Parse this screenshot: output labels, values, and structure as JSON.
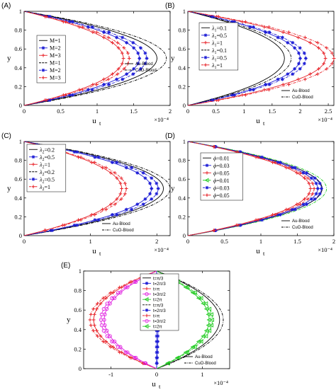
{
  "colors": {
    "black": "#000000",
    "blue": "#1f1fd6",
    "red": "#e8252b",
    "magenta": "#e020e0",
    "green": "#22cc22"
  },
  "chart_data": [
    {
      "panel_label": "(A)",
      "type": "line",
      "xlabel": "u",
      "xlabel_sub": "t",
      "ylabel": "y",
      "exponent": "×10⁻⁴",
      "xlim": [
        0,
        2
      ],
      "ylim": [
        0,
        1
      ],
      "xticks": [
        0,
        0.5,
        1,
        1.5,
        2
      ],
      "xtick_labels": [
        "0",
        "0.5",
        "1",
        "1.5",
        "2"
      ],
      "yticks": [
        0,
        0.2,
        0.4,
        0.6,
        0.8,
        1
      ],
      "ytick_labels": [
        "0",
        "0.2",
        "0.4",
        "0.6",
        "0.8",
        "1"
      ],
      "legend": {
        "placement": "left",
        "entries": [
          "M=1",
          "M=2",
          "M=3",
          "M=1",
          "M=2",
          "M=3"
        ],
        "styles": [
          "kl",
          "bs",
          "rs",
          "kd",
          "bd",
          "rd"
        ]
      },
      "legend2": {
        "entries": [
          "Au-Blood",
          "CuO-Blood"
        ]
      },
      "series": [
        {
          "group": "Au-Blood",
          "legend_entry": "M=1",
          "color": "black",
          "dash": false,
          "marker": "none",
          "peak": 1.82
        },
        {
          "group": "Au-Blood",
          "legend_entry": "M=2",
          "color": "blue",
          "dash": false,
          "marker": "star",
          "peak": 1.58
        },
        {
          "group": "Au-Blood",
          "legend_entry": "M=3",
          "color": "red",
          "dash": false,
          "marker": "plus",
          "peak": 1.36
        },
        {
          "group": "CuO-Blood",
          "legend_entry": "M=1",
          "color": "black",
          "dash": true,
          "marker": "none",
          "peak": 1.95
        },
        {
          "group": "CuO-Blood",
          "legend_entry": "M=2",
          "color": "blue",
          "dash": true,
          "marker": "star",
          "peak": 1.68
        },
        {
          "group": "CuO-Blood",
          "legend_entry": "M=3",
          "color": "red",
          "dash": true,
          "marker": "plus",
          "peak": 1.44
        }
      ]
    },
    {
      "panel_label": "(B)",
      "type": "line",
      "xlabel": "u",
      "xlabel_sub": "t",
      "ylabel": "y",
      "exponent": "×10⁻⁴",
      "xlim": [
        0,
        2.6
      ],
      "ylim": [
        0,
        1
      ],
      "xticks": [
        0,
        0.5,
        1,
        1.5,
        2,
        2.5
      ],
      "xtick_labels": [
        "0",
        "0.5",
        "1",
        "1.5",
        "2",
        "2.5"
      ],
      "yticks": [
        0,
        0.2,
        0.4,
        0.6,
        0.8,
        1
      ],
      "ytick_labels": [
        "0",
        "0.2",
        "0.4",
        "0.6",
        "0.8",
        "1"
      ],
      "legend": {
        "placement": "left",
        "symbol": "λ",
        "sub": "1",
        "entries": [
          "=0.1",
          "=0.5",
          "=1",
          "=0.1",
          "=0.5",
          "=1"
        ],
        "styles": [
          "kl",
          "bs",
          "rs",
          "kd",
          "bd",
          "rd"
        ]
      },
      "legend2": {
        "entries": [
          "Au-Blood",
          "CuO-Blood"
        ]
      },
      "series": [
        {
          "group": "Au-Blood",
          "legend_entry": "λ1=0.1",
          "color": "black",
          "dash": false,
          "marker": "none",
          "peak": 1.72
        },
        {
          "group": "Au-Blood",
          "legend_entry": "λ1=0.5",
          "color": "blue",
          "dash": false,
          "marker": "star",
          "peak": 2.0
        },
        {
          "group": "Au-Blood",
          "legend_entry": "λ1=1",
          "color": "red",
          "dash": false,
          "marker": "plus",
          "peak": 2.45
        },
        {
          "group": "CuO-Blood",
          "legend_entry": "λ1=0.1",
          "color": "black",
          "dash": true,
          "marker": "none",
          "peak": 1.84
        },
        {
          "group": "CuO-Blood",
          "legend_entry": "λ1=0.5",
          "color": "blue",
          "dash": true,
          "marker": "star",
          "peak": 2.1
        },
        {
          "group": "CuO-Blood",
          "legend_entry": "λ1=1",
          "color": "red",
          "dash": true,
          "marker": "plus",
          "peak": 2.6
        }
      ]
    },
    {
      "panel_label": "(C)",
      "type": "line",
      "xlabel": "u",
      "xlabel_sub": "t",
      "ylabel": "y",
      "exponent": "×10⁻⁴",
      "xlim": [
        0,
        2.2
      ],
      "ylim": [
        0,
        1
      ],
      "xticks": [
        0,
        1,
        2
      ],
      "xtick_labels": [
        "0",
        "1",
        "2"
      ],
      "yticks": [
        0,
        0.2,
        0.4,
        0.6,
        0.8,
        1
      ],
      "ytick_labels": [
        "0",
        "0.2",
        "0.4",
        "0.6",
        "0.8",
        "1"
      ],
      "legend": {
        "placement": "left",
        "symbol": "λ",
        "sub": "2",
        "entries": [
          "=0.2",
          "=0.5",
          "=1",
          "=0.2",
          "=0.5",
          "=1"
        ],
        "styles": [
          "kl",
          "bs",
          "rs",
          "kd",
          "bd",
          "rd"
        ]
      },
      "legend2": {
        "entries": [
          "Au-Blood",
          "CuO-Blood"
        ]
      },
      "series": [
        {
          "group": "Au-Blood",
          "legend_entry": "λ2=0.2",
          "color": "black",
          "dash": false,
          "marker": "none",
          "peak": 2.1
        },
        {
          "group": "Au-Blood",
          "legend_entry": "λ2=0.5",
          "color": "blue",
          "dash": false,
          "marker": "star",
          "peak": 1.92
        },
        {
          "group": "Au-Blood",
          "legend_entry": "λ2=1",
          "color": "red",
          "dash": false,
          "marker": "plus",
          "peak": 1.47
        },
        {
          "group": "CuO-Blood",
          "legend_entry": "λ2=0.2",
          "color": "black",
          "dash": true,
          "marker": "none",
          "peak": 2.2
        },
        {
          "group": "CuO-Blood",
          "legend_entry": "λ2=0.5",
          "color": "blue",
          "dash": true,
          "marker": "star",
          "peak": 2.02
        },
        {
          "group": "CuO-Blood",
          "legend_entry": "λ2=1",
          "color": "red",
          "dash": true,
          "marker": "plus",
          "peak": 1.54
        }
      ]
    },
    {
      "panel_label": "(D)",
      "type": "line",
      "xlabel": "u",
      "xlabel_sub": "t",
      "ylabel": "y",
      "exponent": "×10⁻⁴",
      "xlim": [
        0,
        2
      ],
      "ylim": [
        0,
        1
      ],
      "xticks": [
        0,
        0.5,
        1,
        1.5,
        2
      ],
      "xtick_labels": [
        "0",
        "0.5",
        "1",
        "1.5",
        "2"
      ],
      "yticks": [
        0,
        0.2,
        0.4,
        0.6,
        0.8,
        1
      ],
      "ytick_labels": [
        "0",
        "0.2",
        "0.4",
        "0.6",
        "0.8",
        "1"
      ],
      "legend": {
        "placement": "left",
        "symbol": "ϕ",
        "entries": [
          "=0.01",
          "=0.03",
          "=0.05",
          "=0.01",
          "=0.03",
          "=0.05"
        ],
        "styles": [
          "kl",
          "bs",
          "rs",
          "gd",
          "bd",
          "rd"
        ]
      },
      "legend2": {
        "entries": [
          "Au-Blood",
          "CuO-Blood"
        ]
      },
      "series": [
        {
          "group": "Au-Blood",
          "legend_entry": "ϕ=0.01",
          "color": "black",
          "dash": false,
          "marker": "none",
          "peak": 1.84
        },
        {
          "group": "Au-Blood",
          "legend_entry": "ϕ=0.03",
          "color": "blue",
          "dash": false,
          "marker": "star",
          "peak": 1.78
        },
        {
          "group": "Au-Blood",
          "legend_entry": "ϕ=0.05",
          "color": "red",
          "dash": false,
          "marker": "plus",
          "peak": 1.68
        },
        {
          "group": "CuO-Blood",
          "legend_entry": "ϕ=0.01",
          "color": "green",
          "dash": true,
          "marker": "none",
          "peak": 1.9
        },
        {
          "group": "CuO-Blood",
          "legend_entry": "ϕ=0.03",
          "color": "blue",
          "dash": true,
          "marker": "star",
          "peak": 1.83
        },
        {
          "group": "CuO-Blood",
          "legend_entry": "ϕ=0.05",
          "color": "red",
          "dash": true,
          "marker": "plus",
          "peak": 1.73
        }
      ]
    },
    {
      "panel_label": "(E)",
      "type": "line",
      "xlabel": "u",
      "xlabel_sub": "t",
      "ylabel": "y",
      "exponent": "×10⁻⁴",
      "xlim": [
        -1.6,
        1.6
      ],
      "ylim": [
        0,
        1
      ],
      "xticks": [
        -1,
        0,
        1
      ],
      "xtick_labels": [
        "-1",
        "0",
        "1"
      ],
      "yticks": [
        0,
        0.2,
        0.4,
        0.6,
        0.8,
        1
      ],
      "ytick_labels": [
        "0",
        "0.2",
        "0.4",
        "0.6",
        "0.8",
        "1"
      ],
      "legend": {
        "placement": "center",
        "entries": [
          "t=π/3",
          "t=2π/3",
          "t=π",
          "t=3π/2",
          "t=2π",
          "t=π/3",
          "t=2π/3",
          "t=π",
          "t=3π/2",
          "t=2π"
        ],
        "styles": [
          "kl",
          "bs",
          "rs",
          "ms",
          "gs",
          "kd",
          "bd",
          "rd",
          "md",
          "gd"
        ]
      },
      "legend2": {
        "entries": [
          "Au-Blood",
          "CuO-Blood"
        ]
      },
      "series": [
        {
          "group": "Au-Blood",
          "legend_entry": "t=π/3",
          "color": "black",
          "dash": false,
          "marker": "none",
          "peak": 1.38
        },
        {
          "group": "Au-Blood",
          "legend_entry": "t=2π/3",
          "color": "blue",
          "dash": false,
          "marker": "star",
          "peak": 0.0
        },
        {
          "group": "Au-Blood",
          "legend_entry": "t=π",
          "color": "red",
          "dash": false,
          "marker": "plus",
          "peak": -1.38
        },
        {
          "group": "Au-Blood",
          "legend_entry": "t=3π/2",
          "color": "magenta",
          "dash": false,
          "marker": "circle",
          "peak": -1.15
        },
        {
          "group": "Au-Blood",
          "legend_entry": "t=2π",
          "color": "green",
          "dash": false,
          "marker": "tri",
          "peak": 1.15
        },
        {
          "group": "CuO-Blood",
          "legend_entry": "t=π/3",
          "color": "black",
          "dash": true,
          "marker": "none",
          "peak": 1.46
        },
        {
          "group": "CuO-Blood",
          "legend_entry": "t=2π/3",
          "color": "blue",
          "dash": true,
          "marker": "star",
          "peak": 0.03
        },
        {
          "group": "CuO-Blood",
          "legend_entry": "t=π",
          "color": "red",
          "dash": true,
          "marker": "plus",
          "peak": -1.46
        },
        {
          "group": "CuO-Blood",
          "legend_entry": "t=3π/2",
          "color": "magenta",
          "dash": true,
          "marker": "circle",
          "peak": -1.22
        },
        {
          "group": "CuO-Blood",
          "legend_entry": "t=2π",
          "color": "green",
          "dash": true,
          "marker": "tri",
          "peak": 1.22
        }
      ]
    }
  ]
}
